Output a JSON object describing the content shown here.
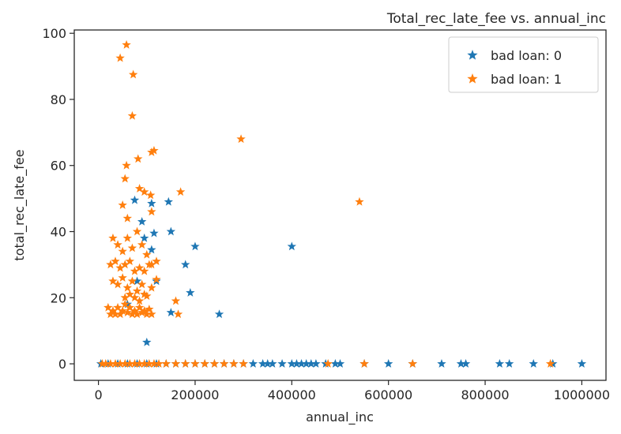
{
  "chart_data": {
    "type": "scatter",
    "title": "Total_rec_late_fee vs. annual_inc",
    "xlabel": "annual_inc",
    "ylabel": "total_rec_late_fee",
    "xlim": [
      -50000,
      1050000
    ],
    "ylim": [
      -5,
      101
    ],
    "xticks": [
      0,
      200000,
      400000,
      600000,
      800000,
      1000000
    ],
    "xtick_labels": [
      "0",
      "200000",
      "400000",
      "600000",
      "800000",
      "1000000"
    ],
    "yticks": [
      0,
      20,
      40,
      60,
      80,
      100
    ],
    "ytick_labels": [
      "0",
      "20",
      "40",
      "60",
      "80",
      "100"
    ],
    "grid": false,
    "legend_position": "top-right",
    "marker": "star",
    "series": [
      {
        "name": "bad loan: 0",
        "color": "#1f77b4",
        "points": [
          [
            5000,
            0
          ],
          [
            20000,
            0
          ],
          [
            40000,
            0
          ],
          [
            60000,
            0
          ],
          [
            80000,
            0
          ],
          [
            100000,
            0
          ],
          [
            120000,
            0
          ],
          [
            140000,
            0
          ],
          [
            160000,
            0
          ],
          [
            180000,
            0
          ],
          [
            200000,
            0
          ],
          [
            220000,
            0
          ],
          [
            240000,
            0
          ],
          [
            260000,
            0
          ],
          [
            280000,
            0
          ],
          [
            300000,
            0
          ],
          [
            320000,
            0
          ],
          [
            340000,
            0
          ],
          [
            350000,
            0
          ],
          [
            360000,
            0
          ],
          [
            380000,
            0
          ],
          [
            400000,
            0
          ],
          [
            410000,
            0
          ],
          [
            420000,
            0
          ],
          [
            430000,
            0
          ],
          [
            440000,
            0
          ],
          [
            450000,
            0
          ],
          [
            470000,
            0
          ],
          [
            490000,
            0
          ],
          [
            500000,
            0
          ],
          [
            550000,
            0
          ],
          [
            600000,
            0
          ],
          [
            650000,
            0
          ],
          [
            710000,
            0
          ],
          [
            750000,
            0
          ],
          [
            760000,
            0
          ],
          [
            830000,
            0
          ],
          [
            850000,
            0
          ],
          [
            900000,
            0
          ],
          [
            940000,
            0
          ],
          [
            1000000,
            0
          ],
          [
            100000,
            6.5
          ],
          [
            75000,
            49.5
          ],
          [
            110000,
            48.5
          ],
          [
            145000,
            49
          ],
          [
            150000,
            40
          ],
          [
            115000,
            39.5
          ],
          [
            90000,
            43
          ],
          [
            95000,
            38
          ],
          [
            200000,
            35.5
          ],
          [
            400000,
            35.5
          ],
          [
            180000,
            30
          ],
          [
            190000,
            21.5
          ],
          [
            250000,
            15
          ],
          [
            150000,
            15.5
          ],
          [
            120000,
            25
          ],
          [
            80000,
            25
          ],
          [
            110000,
            34.5
          ],
          [
            60000,
            18
          ]
        ]
      },
      {
        "name": "bad loan: 1",
        "color": "#ff7f0e",
        "points": [
          [
            8000,
            0
          ],
          [
            15000,
            0
          ],
          [
            25000,
            0
          ],
          [
            35000,
            0
          ],
          [
            45000,
            0
          ],
          [
            55000,
            0
          ],
          [
            65000,
            0
          ],
          [
            75000,
            0
          ],
          [
            85000,
            0
          ],
          [
            95000,
            0
          ],
          [
            105000,
            0
          ],
          [
            115000,
            0
          ],
          [
            125000,
            0
          ],
          [
            140000,
            0
          ],
          [
            160000,
            0
          ],
          [
            180000,
            0
          ],
          [
            200000,
            0
          ],
          [
            220000,
            0
          ],
          [
            240000,
            0
          ],
          [
            260000,
            0
          ],
          [
            280000,
            0
          ],
          [
            300000,
            0
          ],
          [
            475000,
            0
          ],
          [
            550000,
            0
          ],
          [
            650000,
            0
          ],
          [
            935000,
            0
          ],
          [
            45000,
            92.5
          ],
          [
            58000,
            96.5
          ],
          [
            72000,
            87.5
          ],
          [
            70000,
            75
          ],
          [
            295000,
            68
          ],
          [
            540000,
            49
          ],
          [
            110000,
            64
          ],
          [
            115000,
            64.5
          ],
          [
            82000,
            62
          ],
          [
            58000,
            60
          ],
          [
            55000,
            56
          ],
          [
            85000,
            53
          ],
          [
            95000,
            52
          ],
          [
            108000,
            51
          ],
          [
            170000,
            52
          ],
          [
            50000,
            48
          ],
          [
            60000,
            44
          ],
          [
            110000,
            46
          ],
          [
            30000,
            38
          ],
          [
            40000,
            36
          ],
          [
            50000,
            34
          ],
          [
            60000,
            38
          ],
          [
            70000,
            35
          ],
          [
            80000,
            40
          ],
          [
            90000,
            36
          ],
          [
            100000,
            33
          ],
          [
            110000,
            30
          ],
          [
            120000,
            31
          ],
          [
            25000,
            30
          ],
          [
            35000,
            31
          ],
          [
            45000,
            29
          ],
          [
            55000,
            30
          ],
          [
            65000,
            31
          ],
          [
            75000,
            28
          ],
          [
            85000,
            29
          ],
          [
            95000,
            28
          ],
          [
            105000,
            30
          ],
          [
            30000,
            25
          ],
          [
            40000,
            24
          ],
          [
            50000,
            26
          ],
          [
            60000,
            23
          ],
          [
            70000,
            25
          ],
          [
            80000,
            22
          ],
          [
            90000,
            24
          ],
          [
            110000,
            23
          ],
          [
            120000,
            25.5
          ],
          [
            20000,
            17
          ],
          [
            25000,
            15
          ],
          [
            30000,
            16
          ],
          [
            35000,
            15
          ],
          [
            40000,
            17
          ],
          [
            45000,
            15
          ],
          [
            50000,
            16
          ],
          [
            55000,
            18
          ],
          [
            60000,
            15.5
          ],
          [
            65000,
            17
          ],
          [
            70000,
            15
          ],
          [
            75000,
            16
          ],
          [
            80000,
            15
          ],
          [
            85000,
            17
          ],
          [
            90000,
            15.5
          ],
          [
            95000,
            16
          ],
          [
            100000,
            15
          ],
          [
            105000,
            16.5
          ],
          [
            110000,
            15
          ],
          [
            160000,
            19
          ],
          [
            165000,
            15
          ],
          [
            55000,
            20
          ],
          [
            65000,
            21
          ],
          [
            75000,
            20
          ],
          [
            85000,
            19
          ],
          [
            95000,
            21
          ],
          [
            100000,
            20.5
          ]
        ]
      }
    ]
  }
}
